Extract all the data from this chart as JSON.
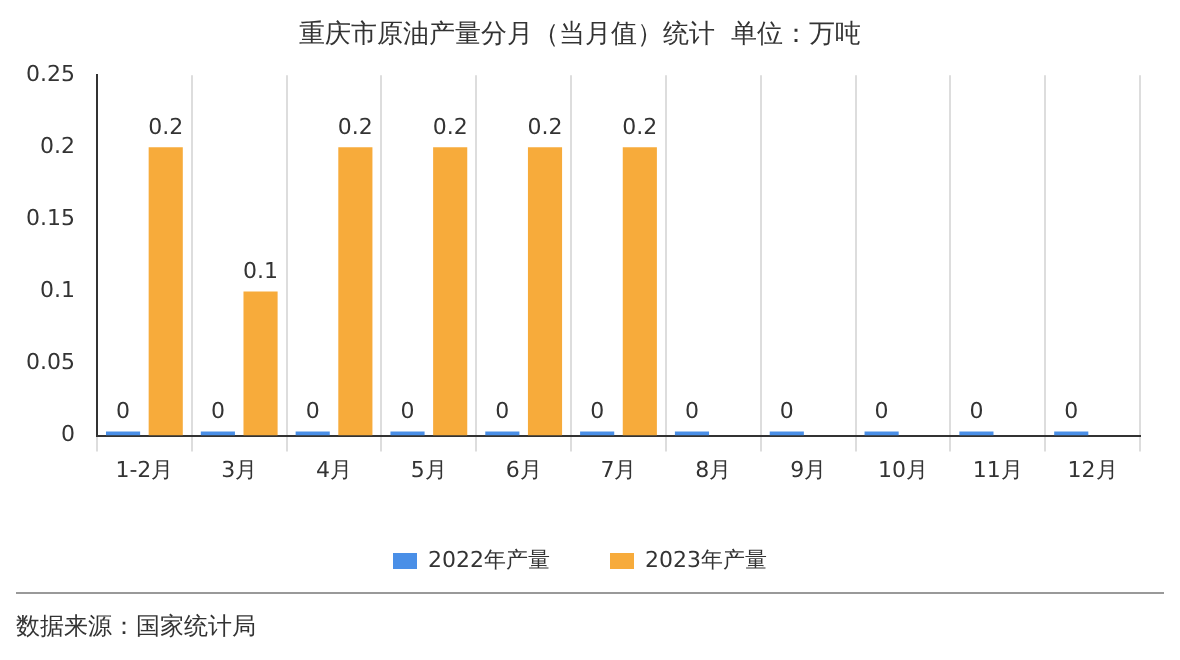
{
  "chart_data": {
    "type": "bar",
    "title": "重庆市原油产量分月（当月值）统计  单位：万吨",
    "categories": [
      "1-2月",
      "3月",
      "4月",
      "5月",
      "6月",
      "7月",
      "8月",
      "9月",
      "10月",
      "11月",
      "12月"
    ],
    "series": [
      {
        "name": "2022年产量",
        "color": "#4a8fe7",
        "values": [
          0,
          0,
          0,
          0,
          0,
          0,
          0,
          0,
          0,
          0,
          0
        ]
      },
      {
        "name": "2023年产量",
        "color": "#f7ab3b",
        "values": [
          0.2,
          0.1,
          0.2,
          0.2,
          0.2,
          0.2,
          null,
          null,
          null,
          null,
          null
        ]
      }
    ],
    "ylim": [
      0,
      0.25
    ],
    "yticks": [
      0,
      0.05,
      0.1,
      0.15,
      0.2,
      0.25
    ],
    "grid": "x",
    "legend": "bottom",
    "data_labels": true,
    "annotations": [
      "数据来源：国家统计局"
    ]
  }
}
